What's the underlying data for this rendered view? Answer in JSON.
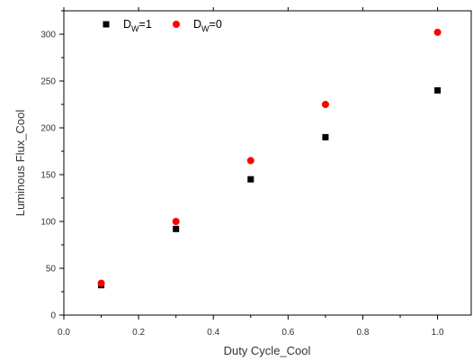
{
  "chart_data": {
    "type": "scatter",
    "title": "",
    "xlabel": "Duty Cycle_Cool",
    "ylabel": "Luminous Flux_Cool",
    "xlim": [
      0.0,
      1.09
    ],
    "ylim": [
      0,
      325
    ],
    "x_ticks": [
      0.0,
      0.2,
      0.4,
      0.6,
      0.8,
      1.0
    ],
    "x_tick_labels": [
      "0.0",
      "0.2",
      "0.4",
      "0.6",
      "0.8",
      "1.0"
    ],
    "y_ticks": [
      0,
      50,
      100,
      150,
      200,
      250,
      300
    ],
    "y_tick_labels": [
      "0",
      "50",
      "100",
      "150",
      "200",
      "250",
      "300"
    ],
    "grid": false,
    "legend_position": "top-left",
    "series": [
      {
        "legend_main": "D",
        "legend_sub": "W",
        "legend_suffix": "=1",
        "marker": "square",
        "color": "#000000",
        "x": [
          0.1,
          0.3,
          0.5,
          0.7,
          1.0
        ],
        "y": [
          32,
          92,
          145,
          190,
          240
        ]
      },
      {
        "legend_main": "D",
        "legend_sub": "W",
        "legend_suffix": "=0",
        "marker": "circle",
        "color": "#ff0000",
        "x": [
          0.1,
          0.3,
          0.5,
          0.7,
          1.0
        ],
        "y": [
          34,
          100,
          165,
          225,
          302
        ]
      }
    ]
  }
}
